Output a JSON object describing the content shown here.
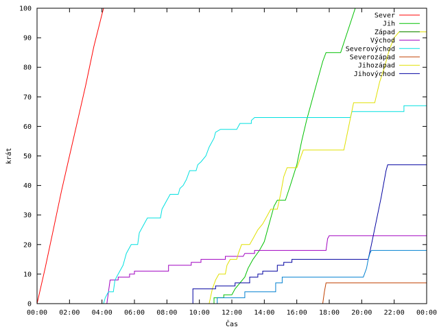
{
  "chart_data": {
    "type": "line",
    "xlabel": "Čas",
    "ylabel": "krát",
    "xlim": [
      0,
      24
    ],
    "ylim": [
      0,
      100
    ],
    "grid": false,
    "legend_position": "top-right",
    "x_ticks": [
      {
        "value": 0,
        "label": "00:00"
      },
      {
        "value": 2,
        "label": "02:00"
      },
      {
        "value": 4,
        "label": "04:00"
      },
      {
        "value": 6,
        "label": "06:00"
      },
      {
        "value": 8,
        "label": "08:00"
      },
      {
        "value": 10,
        "label": "10:00"
      },
      {
        "value": 12,
        "label": "12:00"
      },
      {
        "value": 14,
        "label": "14:00"
      },
      {
        "value": 16,
        "label": "16:00"
      },
      {
        "value": 18,
        "label": "18:00"
      },
      {
        "value": 20,
        "label": "20:00"
      },
      {
        "value": 22,
        "label": "22:00"
      },
      {
        "value": 24,
        "label": "00:00"
      }
    ],
    "y_ticks": [
      0,
      10,
      20,
      30,
      40,
      50,
      60,
      70,
      80,
      90,
      100
    ],
    "series": [
      {
        "name": "Sever",
        "color": "#ff0000",
        "points": [
          [
            0,
            0
          ],
          [
            0.5,
            12
          ],
          [
            1,
            25
          ],
          [
            1.5,
            38
          ],
          [
            2,
            50
          ],
          [
            2.5,
            62
          ],
          [
            3,
            74
          ],
          [
            3.5,
            87
          ],
          [
            4,
            98
          ],
          [
            4.1,
            100
          ]
        ]
      },
      {
        "name": "Jih",
        "color": "#00c000",
        "points": [
          [
            10.9,
            0
          ],
          [
            10.9,
            2
          ],
          [
            11.5,
            2
          ],
          [
            11.5,
            3
          ],
          [
            12,
            3
          ],
          [
            12.2,
            5
          ],
          [
            12.5,
            7
          ],
          [
            12.8,
            9
          ],
          [
            13,
            12
          ],
          [
            13.3,
            15
          ],
          [
            13.7,
            18
          ],
          [
            14,
            21
          ],
          [
            14.3,
            27
          ],
          [
            14.6,
            33
          ],
          [
            14.8,
            35
          ],
          [
            15.3,
            35
          ],
          [
            15.6,
            40
          ],
          [
            16,
            47
          ],
          [
            16.3,
            55
          ],
          [
            16.6,
            62
          ],
          [
            17,
            70
          ],
          [
            17.3,
            76
          ],
          [
            17.6,
            82
          ],
          [
            17.8,
            85
          ],
          [
            18.7,
            85
          ],
          [
            19,
            90
          ],
          [
            19.3,
            95
          ],
          [
            19.6,
            100
          ]
        ]
      },
      {
        "name": "Západ",
        "color": "#008000",
        "points": []
      },
      {
        "name": "Východ",
        "color": "#a000c0",
        "points": [
          [
            4.3,
            0
          ],
          [
            4.5,
            8
          ],
          [
            5,
            8
          ],
          [
            5,
            9
          ],
          [
            5.7,
            9
          ],
          [
            5.7,
            10
          ],
          [
            6,
            10
          ],
          [
            6,
            11
          ],
          [
            8.1,
            11
          ],
          [
            8.1,
            13
          ],
          [
            9.5,
            13
          ],
          [
            9.5,
            14
          ],
          [
            10.1,
            14
          ],
          [
            10.1,
            15
          ],
          [
            11.6,
            15
          ],
          [
            11.6,
            16
          ],
          [
            12.7,
            16
          ],
          [
            12.8,
            17
          ],
          [
            13.4,
            17
          ],
          [
            13.4,
            18
          ],
          [
            17.8,
            18
          ],
          [
            17.9,
            22
          ],
          [
            18,
            23
          ],
          [
            24,
            23
          ]
        ]
      },
      {
        "name": "Severovýchod",
        "color": "#00e0e0",
        "points": [
          [
            4.1,
            0
          ],
          [
            4.2,
            2
          ],
          [
            4.4,
            4
          ],
          [
            4.7,
            4
          ],
          [
            4.8,
            8
          ],
          [
            5,
            10
          ],
          [
            5.3,
            13
          ],
          [
            5.5,
            17
          ],
          [
            5.8,
            20
          ],
          [
            6.2,
            20
          ],
          [
            6.3,
            24
          ],
          [
            6.6,
            27
          ],
          [
            6.8,
            29
          ],
          [
            7.6,
            29
          ],
          [
            7.7,
            32
          ],
          [
            8,
            35
          ],
          [
            8.2,
            37
          ],
          [
            8.7,
            37
          ],
          [
            8.8,
            39
          ],
          [
            9,
            40
          ],
          [
            9.2,
            42
          ],
          [
            9.4,
            45
          ],
          [
            9.8,
            45
          ],
          [
            9.9,
            47
          ],
          [
            10.1,
            48
          ],
          [
            10.4,
            50
          ],
          [
            10.6,
            53
          ],
          [
            10.9,
            56
          ],
          [
            11,
            58
          ],
          [
            11.3,
            59
          ],
          [
            12.3,
            59
          ],
          [
            12.4,
            60
          ],
          [
            12.5,
            61
          ],
          [
            13.2,
            61
          ],
          [
            13.2,
            62
          ],
          [
            13.4,
            63
          ],
          [
            15.9,
            63
          ],
          [
            19.3,
            63
          ],
          [
            19.4,
            65
          ],
          [
            22.6,
            65
          ],
          [
            22.6,
            67
          ],
          [
            24,
            67
          ]
        ]
      },
      {
        "name": "Severozápad",
        "color": "#c04000",
        "points": [
          [
            17.6,
            0
          ],
          [
            17.7,
            4
          ],
          [
            17.8,
            7
          ],
          [
            24,
            7
          ]
        ]
      },
      {
        "name": "Jihozápad",
        "color": "#e0e000",
        "points": [
          [
            10.6,
            0
          ],
          [
            10.8,
            5
          ],
          [
            11,
            8
          ],
          [
            11.2,
            10
          ],
          [
            11.6,
            10
          ],
          [
            11.7,
            13
          ],
          [
            11.9,
            15
          ],
          [
            12.3,
            15
          ],
          [
            12.4,
            17
          ],
          [
            12.6,
            20
          ],
          [
            13.1,
            20
          ],
          [
            13.3,
            22
          ],
          [
            13.6,
            25
          ],
          [
            13.9,
            27
          ],
          [
            14.2,
            30
          ],
          [
            14.4,
            32
          ],
          [
            14.8,
            32
          ],
          [
            15,
            37
          ],
          [
            15.2,
            43
          ],
          [
            15.4,
            46
          ],
          [
            16,
            46
          ],
          [
            16.2,
            49
          ],
          [
            16.4,
            52
          ],
          [
            18.9,
            52
          ],
          [
            19.2,
            60
          ],
          [
            19.5,
            68
          ],
          [
            20.8,
            68
          ],
          [
            21.1,
            75
          ],
          [
            21.4,
            80
          ],
          [
            21.7,
            86
          ],
          [
            22,
            90
          ],
          [
            22.3,
            92
          ],
          [
            24,
            92
          ]
        ]
      },
      {
        "name": "Jihovýchod",
        "color": "#0000a0",
        "points": [
          [
            9.6,
            0
          ],
          [
            9.6,
            5
          ],
          [
            11,
            5
          ],
          [
            11,
            6
          ],
          [
            12.2,
            6
          ],
          [
            12.2,
            7
          ],
          [
            13.1,
            7
          ],
          [
            13.1,
            9
          ],
          [
            13.6,
            9
          ],
          [
            13.6,
            10
          ],
          [
            13.9,
            10
          ],
          [
            13.9,
            11
          ],
          [
            14.8,
            11
          ],
          [
            14.8,
            13
          ],
          [
            15.2,
            13
          ],
          [
            15.2,
            14
          ],
          [
            15.7,
            14
          ],
          [
            15.7,
            15
          ],
          [
            20.4,
            15
          ],
          [
            20.6,
            20
          ],
          [
            20.9,
            28
          ],
          [
            21.2,
            36
          ],
          [
            21.5,
            45
          ],
          [
            21.6,
            47
          ],
          [
            24,
            47
          ]
        ]
      },
      {
        "name": "",
        "color": "#0080d0",
        "points": [
          [
            11.1,
            0
          ],
          [
            11.1,
            2
          ],
          [
            12.8,
            2
          ],
          [
            12.8,
            4
          ],
          [
            14.7,
            4
          ],
          [
            14.7,
            7
          ],
          [
            15.1,
            7
          ],
          [
            15.1,
            9
          ],
          [
            20.1,
            9
          ],
          [
            20.3,
            12
          ],
          [
            20.4,
            15
          ],
          [
            20.5,
            17
          ],
          [
            20.6,
            18
          ],
          [
            24,
            18
          ]
        ]
      }
    ]
  }
}
